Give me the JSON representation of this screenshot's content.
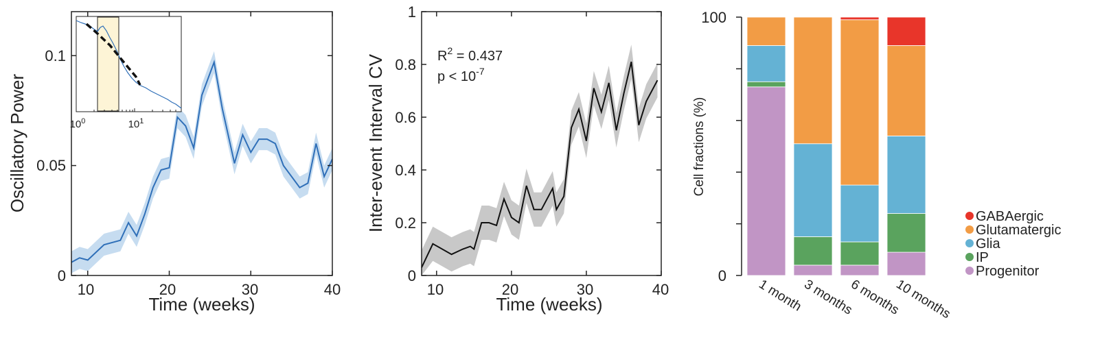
{
  "colors": {
    "power_line": "#2f6fb8",
    "power_band": "#c6dcf0",
    "cv_line": "#111111",
    "cv_band": "#c8c8c8",
    "inset_highlight": "#fdf4d6",
    "inset_fit": "#111111",
    "gaba": "#e8352a",
    "glut": "#f29c45",
    "glia": "#64b2d4",
    "ip": "#5aa35e",
    "progenitor": "#c195c5"
  },
  "chart_data": [
    {
      "type": "line",
      "ylabel": "Oscillatory Power",
      "xlabel": "Time (weeks)",
      "xlim": [
        8,
        40
      ],
      "ylim": [
        0,
        0.12
      ],
      "xticks": [
        "10",
        "20",
        "30",
        "40"
      ],
      "yticks": [
        "0",
        "0.05",
        "0.1"
      ],
      "x": [
        8,
        9,
        10,
        12,
        14,
        15,
        16,
        17,
        18,
        19,
        20,
        21,
        22,
        23,
        24,
        25.5,
        26.5,
        28,
        29,
        30,
        31,
        32,
        33,
        34,
        36,
        37,
        38,
        39,
        40
      ],
      "y": [
        0.006,
        0.008,
        0.007,
        0.014,
        0.016,
        0.024,
        0.018,
        0.028,
        0.04,
        0.048,
        0.049,
        0.072,
        0.068,
        0.058,
        0.082,
        0.097,
        0.076,
        0.051,
        0.064,
        0.056,
        0.062,
        0.062,
        0.06,
        0.05,
        0.04,
        0.042,
        0.06,
        0.045,
        0.053
      ],
      "band": 0.005,
      "inset": {
        "type": "line",
        "xscale": "log",
        "xticks": [
          "10^0",
          "10^1"
        ],
        "note": "log-frequency spectrum with highlighted band and dashed fit"
      }
    },
    {
      "type": "line",
      "ylabel": "Inter-event Interval CV",
      "xlabel": "Time (weeks)",
      "xlim": [
        8,
        40
      ],
      "ylim": [
        0,
        1
      ],
      "xticks": [
        "10",
        "20",
        "30",
        "40"
      ],
      "yticks": [
        "0",
        "0.2",
        "0.4",
        "0.6",
        "0.8",
        "1"
      ],
      "annotation_r2_label": "R",
      "annotation_r2_sup": "2",
      "annotation_r2_value": " = 0.437",
      "annotation_p_label": "p < 10",
      "annotation_p_sup": "-7",
      "x": [
        8,
        9.5,
        12,
        13.5,
        14.5,
        15,
        16,
        17,
        18,
        19,
        20,
        21,
        22,
        23,
        24,
        25.5,
        26,
        27,
        28,
        29,
        30,
        31,
        32,
        33,
        34,
        35,
        36,
        37,
        38,
        39.5
      ],
      "y": [
        0.03,
        0.12,
        0.08,
        0.1,
        0.11,
        0.1,
        0.2,
        0.2,
        0.19,
        0.29,
        0.22,
        0.2,
        0.34,
        0.25,
        0.25,
        0.33,
        0.25,
        0.3,
        0.56,
        0.63,
        0.51,
        0.71,
        0.62,
        0.73,
        0.55,
        0.69,
        0.81,
        0.57,
        0.66,
        0.74
      ],
      "band": 0.065
    },
    {
      "type": "bar",
      "stacked": true,
      "ylabel": "Cell fractions (%)",
      "ylim": [
        0,
        100
      ],
      "yticks": [
        "0",
        "100"
      ],
      "categories": [
        "1 month",
        "3 months",
        "6 months",
        "10 months"
      ],
      "series": [
        {
          "name": "Progenitor",
          "color_key": "progenitor",
          "values": [
            73,
            4,
            4,
            9
          ]
        },
        {
          "name": "IP",
          "color_key": "ip",
          "values": [
            2,
            11,
            9,
            15
          ]
        },
        {
          "name": "Glia",
          "color_key": "glia",
          "values": [
            14,
            36,
            22,
            30
          ]
        },
        {
          "name": "Glutamatergic",
          "color_key": "glut",
          "values": [
            11,
            49,
            64,
            35
          ]
        },
        {
          "name": "GABAergic",
          "color_key": "gaba",
          "values": [
            0,
            0,
            1,
            11
          ]
        }
      ],
      "legend": [
        "GABAergic",
        "Glutamatergic",
        "Glia",
        "IP",
        "Progenitor"
      ],
      "legend_position": "bottom-right"
    }
  ]
}
